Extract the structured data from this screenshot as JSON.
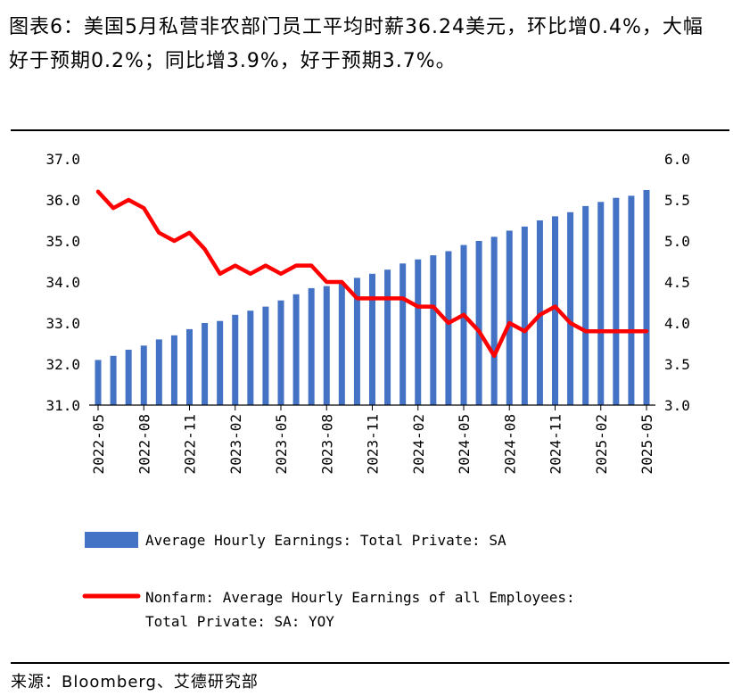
{
  "title": "图表6：美国5月私营非农部门员工平均时薪36.24美元，环比增0.4%，大幅好于预期0.2%；同比增3.9%，好于预期3.7%。",
  "source": "来源：Bloomberg、艾德研究部",
  "chart_data": {
    "type": "bar",
    "categories": [
      "2022-05",
      "2022-06",
      "2022-07",
      "2022-08",
      "2022-09",
      "2022-10",
      "2022-11",
      "2022-12",
      "2023-01",
      "2023-02",
      "2023-03",
      "2023-04",
      "2023-05",
      "2023-06",
      "2023-07",
      "2023-08",
      "2023-09",
      "2023-10",
      "2023-11",
      "2023-12",
      "2024-01",
      "2024-02",
      "2024-03",
      "2024-04",
      "2024-05",
      "2024-06",
      "2024-07",
      "2024-08",
      "2024-09",
      "2024-10",
      "2024-11",
      "2024-12",
      "2025-01",
      "2025-02",
      "2025-03",
      "2025-04",
      "2025-05"
    ],
    "x_tick_labels": [
      "2022-05",
      "2022-08",
      "2022-11",
      "2023-02",
      "2023-05",
      "2023-08",
      "2023-11",
      "2024-02",
      "2024-05",
      "2024-08",
      "2024-11",
      "2025-02",
      "2025-05"
    ],
    "series": [
      {
        "name": "Average Hourly Earnings: Total Private: SA",
        "type": "bar",
        "axis": "left",
        "color": "#4472C4",
        "values": [
          32.1,
          32.2,
          32.35,
          32.45,
          32.6,
          32.7,
          32.85,
          33.0,
          33.05,
          33.2,
          33.3,
          33.4,
          33.55,
          33.7,
          33.85,
          33.9,
          34.0,
          34.1,
          34.2,
          34.3,
          34.45,
          34.55,
          34.65,
          34.75,
          34.9,
          35.0,
          35.1,
          35.25,
          35.35,
          35.5,
          35.6,
          35.7,
          35.85,
          35.95,
          36.05,
          36.1,
          36.24
        ]
      },
      {
        "name": "Nonfarm: Average Hourly Earnings of all Employees: Total Private: SA: YOY",
        "type": "line",
        "axis": "right",
        "color": "#FF0000",
        "values": [
          5.6,
          5.4,
          5.5,
          5.4,
          5.1,
          5.0,
          5.1,
          4.9,
          4.6,
          4.7,
          4.6,
          4.7,
          4.6,
          4.7,
          4.7,
          4.5,
          4.5,
          4.3,
          4.3,
          4.3,
          4.3,
          4.2,
          4.2,
          4.0,
          4.1,
          3.9,
          3.6,
          4.0,
          3.9,
          4.1,
          4.2,
          4.0,
          3.9,
          3.9,
          3.9,
          3.9,
          3.9
        ]
      }
    ],
    "left_axis": {
      "min": 31.0,
      "max": 37.0,
      "ticks": [
        "31.0",
        "32.0",
        "33.0",
        "34.0",
        "35.0",
        "36.0",
        "37.0"
      ]
    },
    "right_axis": {
      "min": 3.0,
      "max": 6.0,
      "ticks": [
        "3.0",
        "3.5",
        "4.0",
        "4.5",
        "5.0",
        "5.5",
        "6.0"
      ]
    },
    "legend": [
      {
        "label": "Average Hourly Earnings: Total Private: SA"
      },
      {
        "label_lines": [
          "Nonfarm: Average Hourly Earnings of all Employees:",
          "Total Private: SA: YOY"
        ]
      }
    ]
  }
}
